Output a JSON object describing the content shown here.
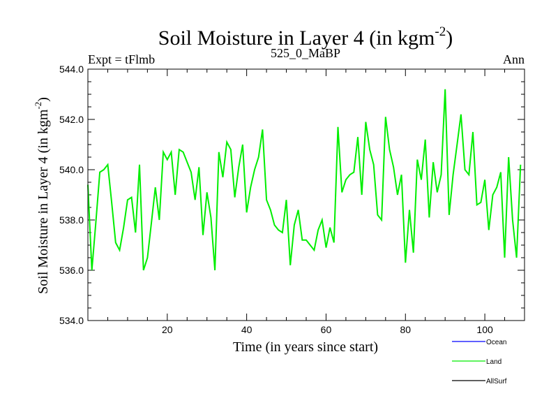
{
  "chart_data": {
    "type": "line",
    "title": "Soil Moisture in Layer 4 (in kgm",
    "title_sup": "-2",
    "title_close": ")",
    "subtitle_left": "Expt = tFlmb",
    "subtitle_center": "525_0_MaBP",
    "subtitle_right": "Ann",
    "xlabel": "Time (in years since start)",
    "ylabel": "Soil Moisture in Layer 4 (in kgm",
    "ylabel_sup": "-2",
    "ylabel_close": ")",
    "xlim": [
      0,
      110
    ],
    "ylim": [
      534,
      544
    ],
    "x_ticks": [
      20,
      40,
      60,
      80,
      100
    ],
    "y_ticks": [
      534,
      536,
      538,
      540,
      542,
      544
    ],
    "y_tick_labels": [
      "534.0",
      "536.0",
      "538.0",
      "540.0",
      "542.0",
      "544.0"
    ],
    "series": [
      {
        "name": "Land",
        "color": "#00ee00",
        "x": [
          0,
          1,
          2,
          3,
          4,
          5,
          6,
          7,
          8,
          9,
          10,
          11,
          12,
          13,
          14,
          15,
          16,
          17,
          18,
          19,
          20,
          21,
          22,
          23,
          24,
          25,
          26,
          27,
          28,
          29,
          30,
          31,
          32,
          33,
          34,
          35,
          36,
          37,
          38,
          39,
          40,
          41,
          42,
          43,
          44,
          45,
          46,
          47,
          48,
          49,
          50,
          51,
          52,
          53,
          54,
          55,
          56,
          57,
          58,
          59,
          60,
          61,
          62,
          63,
          64,
          65,
          66,
          67,
          68,
          69,
          70,
          71,
          72,
          73,
          74,
          75,
          76,
          77,
          78,
          79,
          80,
          81,
          82,
          83,
          84,
          85,
          86,
          87,
          88,
          89,
          90,
          91,
          92,
          93,
          94,
          95,
          96,
          97,
          98,
          99,
          100,
          101,
          102,
          103,
          104,
          105,
          106,
          107,
          108,
          109
        ],
        "values": [
          539.4,
          536.0,
          537.9,
          539.9,
          540.0,
          540.2,
          538.7,
          537.1,
          536.8,
          537.7,
          538.8,
          538.9,
          537.5,
          540.2,
          536.0,
          536.5,
          537.9,
          539.3,
          538.0,
          540.7,
          540.4,
          540.7,
          539.0,
          540.8,
          540.7,
          540.3,
          539.9,
          538.8,
          540.1,
          537.4,
          539.1,
          538.1,
          536.0,
          540.7,
          539.7,
          541.1,
          540.8,
          538.9,
          540.1,
          541.0,
          538.3,
          539.3,
          540.0,
          540.5,
          541.6,
          538.8,
          538.4,
          537.8,
          537.6,
          537.5,
          538.8,
          536.2,
          537.8,
          538.4,
          537.2,
          537.2,
          537.0,
          536.8,
          537.6,
          538.0,
          536.9,
          537.7,
          537.1,
          541.7,
          539.1,
          539.6,
          539.8,
          539.9,
          541.3,
          539.0,
          541.9,
          540.8,
          540.2,
          538.2,
          538.0,
          542.1,
          540.8,
          540.1,
          539.0,
          539.8,
          536.3,
          538.4,
          536.7,
          540.4,
          539.6,
          541.2,
          538.1,
          540.3,
          539.1,
          539.8,
          543.2,
          538.2,
          539.8,
          541.0,
          542.2,
          540.0,
          539.8,
          541.5,
          538.6,
          538.7,
          539.6,
          537.6,
          539.0,
          539.3,
          539.9,
          536.5,
          540.5,
          538.0,
          536.5,
          540.2
        ]
      }
    ],
    "legend": {
      "placement": "bottom-right",
      "items": [
        {
          "label": "Ocean",
          "color": "#0000ff"
        },
        {
          "label": "Land",
          "color": "#00ee00"
        },
        {
          "label": "AllSurf",
          "color": "#000000"
        }
      ]
    }
  }
}
